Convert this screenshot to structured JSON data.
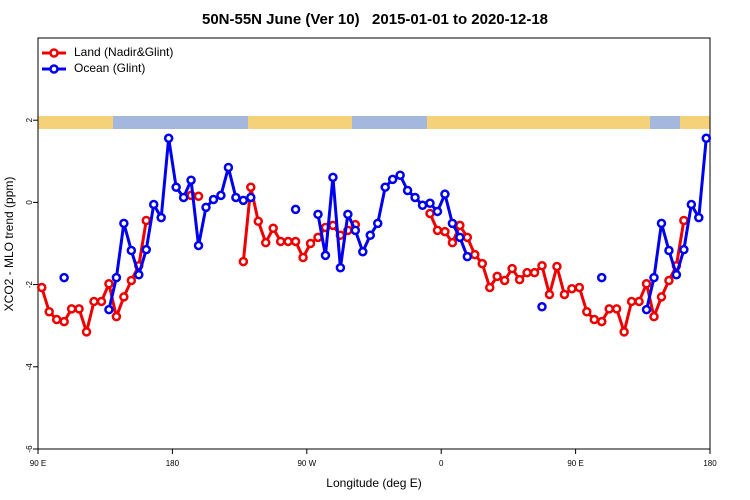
{
  "chart_data": {
    "type": "line",
    "title": "50N-55N June (Ver 10)   2015-01-01 to 2020-12-18",
    "x_label": "Longitude (deg E)",
    "y_label": "XCO2 - MLO trend (ppm)",
    "xlim": [
      90,
      540
    ],
    "xticks": [
      {
        "value": 90,
        "label": "90 E"
      },
      {
        "value": 180,
        "label": "180"
      },
      {
        "value": 270,
        "label": "90 W"
      },
      {
        "value": 360,
        "label": "0"
      },
      {
        "value": 450,
        "label": "90 E"
      },
      {
        "value": 540,
        "label": "180"
      }
    ],
    "ylim": [
      -6,
      4
    ],
    "yticks": [
      -6,
      -4,
      -2,
      0,
      2
    ],
    "legend": "top-left",
    "x": [
      92.5,
      97.5,
      102.5,
      107.5,
      112.5,
      117.5,
      122.5,
      127.5,
      132.5,
      137.5,
      142.5,
      147.5,
      152.5,
      157.5,
      162.5,
      167.5,
      172.5,
      177.5,
      182.5,
      187.5,
      192.5,
      197.5,
      202.5,
      207.5,
      212.5,
      217.5,
      222.5,
      227.5,
      232.5,
      237.5,
      242.5,
      247.5,
      252.5,
      257.5,
      262.5,
      267.5,
      272.5,
      277.5,
      282.5,
      287.5,
      292.5,
      297.5,
      302.5,
      307.5,
      312.5,
      317.5,
      322.5,
      327.5,
      332.5,
      337.5,
      342.5,
      347.5,
      352.5,
      357.5,
      362.5,
      367.5,
      372.5,
      377.5,
      382.5,
      387.5,
      392.5,
      397.5,
      402.5,
      407.5,
      412.5,
      417.5,
      422.5,
      427.5,
      432.5,
      437.5,
      442.5,
      447.5,
      452.5,
      457.5,
      462.5,
      467.5,
      472.5,
      477.5,
      482.5,
      487.5,
      492.5,
      497.5,
      502.5,
      507.5,
      512.5,
      517.5,
      522.5,
      527.5,
      532.5,
      537.5
    ],
    "series": [
      {
        "name": "Land (Nadir&Glint)",
        "color": "#ee0000",
        "values": [
          -2.07,
          -2.66,
          -2.85,
          -2.9,
          -2.59,
          -2.59,
          -3.15,
          -2.41,
          -2.41,
          -1.98,
          -2.78,
          -2.3,
          -1.9,
          -1.54,
          -0.44,
          null,
          null,
          null,
          null,
          null,
          0.17,
          0.15,
          null,
          null,
          null,
          null,
          null,
          -1.44,
          0.37,
          -0.46,
          -0.98,
          -0.63,
          -0.95,
          -0.95,
          -0.95,
          -1.34,
          -1.0,
          -0.85,
          -0.61,
          -0.56,
          -0.8,
          -0.68,
          -0.54,
          null,
          null,
          null,
          null,
          null,
          null,
          null,
          null,
          null,
          -0.27,
          -0.68,
          -0.71,
          -0.98,
          -0.56,
          -0.85,
          -1.27,
          -1.49,
          -2.07,
          -1.8,
          -1.9,
          -1.61,
          -1.88,
          -1.71,
          -1.71,
          -1.54,
          -2.24,
          -1.56,
          -2.24,
          -2.1,
          -2.07,
          -2.66,
          -2.85,
          -2.9,
          -2.59,
          -2.59,
          -3.15,
          -2.41,
          -2.41,
          -1.98,
          -2.78,
          -2.3,
          -1.9,
          -1.54,
          -0.44,
          null,
          null,
          null
        ]
      },
      {
        "name": "Ocean (Glint)",
        "color": "#0000ee",
        "values": [
          null,
          null,
          null,
          -1.83,
          null,
          null,
          null,
          null,
          null,
          -2.61,
          -1.83,
          -0.51,
          -1.17,
          -1.76,
          -1.15,
          -0.05,
          -0.37,
          1.56,
          0.37,
          0.12,
          0.54,
          -1.05,
          -0.12,
          0.07,
          0.17,
          0.85,
          0.12,
          0.05,
          0.12,
          null,
          null,
          null,
          null,
          null,
          -0.17,
          null,
          null,
          -0.29,
          -1.29,
          0.61,
          -1.59,
          -0.29,
          -0.68,
          -1.2,
          -0.8,
          -0.51,
          0.37,
          0.56,
          0.66,
          0.29,
          0.12,
          -0.07,
          -0.02,
          -0.22,
          0.2,
          -0.51,
          -0.85,
          -1.32,
          null,
          null,
          null,
          null,
          null,
          null,
          null,
          null,
          null,
          -2.54,
          null,
          null,
          null,
          null,
          null,
          null,
          null,
          -1.83,
          null,
          null,
          null,
          null,
          null,
          -2.61,
          -1.83,
          -0.51,
          -1.17,
          -1.76,
          -1.15,
          -0.05,
          -0.37,
          1.56
        ]
      }
    ]
  }
}
